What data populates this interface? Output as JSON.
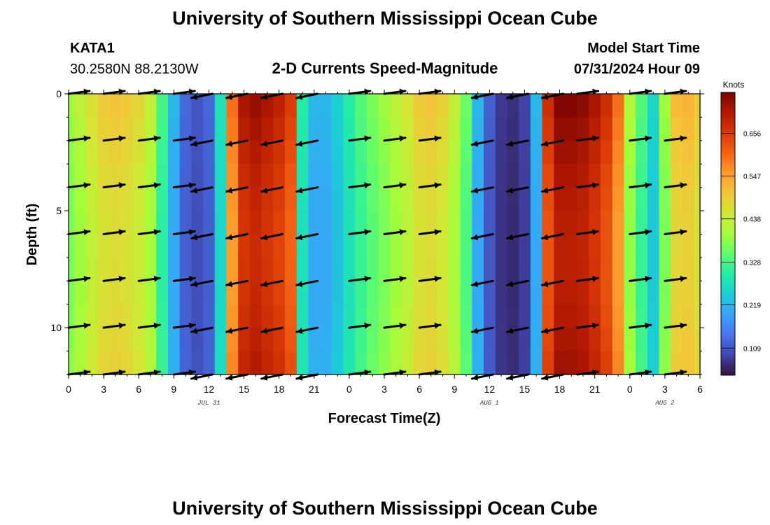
{
  "title": "University of Southern Mississippi Ocean Cube",
  "station": {
    "id": "KATA1",
    "coords": "30.2580N  88.2130W"
  },
  "subtitle": "2-D Currents Speed-Magnitude",
  "model_start": {
    "label": "Model Start Time",
    "value": "07/31/2024 Hour 09"
  },
  "footer_title": "University of Southern Mississippi Ocean Cube",
  "chart_data": {
    "type": "heatmap",
    "title": "2-D Currents Speed-Magnitude",
    "xlabel": "Forecast Time(Z)",
    "ylabel": "Depth (ft)",
    "x_range_hours": [
      0,
      54
    ],
    "y_range_ft": [
      0,
      12
    ],
    "x_tick_labels": [
      "0",
      "3",
      "6",
      "9",
      "12",
      "15",
      "18",
      "21",
      "0",
      "3",
      "6",
      "9",
      "12",
      "15",
      "18",
      "21",
      "0",
      "3",
      "6"
    ],
    "y_tick_labels": [
      "0",
      "5",
      "10"
    ],
    "date_labels": [
      {
        "label": "JUL 31",
        "hour": 12
      },
      {
        "label": "AUG 1",
        "hour": 36
      },
      {
        "label": "AUG 2",
        "hour": 51
      }
    ],
    "colorbar": {
      "unit": "Knots",
      "range": [
        0.04,
        0.76
      ],
      "ticks": [
        "0.109",
        "0.219",
        "0.328",
        "0.438",
        "0.547",
        "0.656"
      ]
    },
    "series_speed_by_hour": [
      0.4,
      0.43,
      0.47,
      0.5,
      0.51,
      0.5,
      0.48,
      0.44,
      0.33,
      0.22,
      0.13,
      0.11,
      0.13,
      0.28,
      0.6,
      0.72,
      0.74,
      0.72,
      0.7,
      0.66,
      0.3,
      0.22,
      0.22,
      0.25,
      0.3,
      0.34,
      0.37,
      0.4,
      0.43,
      0.46,
      0.5,
      0.51,
      0.49,
      0.44,
      0.36,
      0.22,
      0.12,
      0.08,
      0.07,
      0.09,
      0.22,
      0.68,
      0.76,
      0.76,
      0.75,
      0.72,
      0.68,
      0.6,
      0.42,
      0.34,
      0.26,
      0.4,
      0.52,
      0.53,
      0.5
    ],
    "arrow_depths_ft": [
      0,
      2,
      4,
      6,
      8,
      10,
      12
    ],
    "arrow_hours": [
      0,
      3,
      6,
      9,
      10.5,
      13.5,
      16.5,
      19.5,
      24,
      27,
      30,
      34.5,
      37.5,
      40.5,
      43.5,
      48,
      51
    ],
    "arrow_direction": [
      1,
      1,
      1,
      1,
      -1,
      -1,
      -1,
      -1,
      1,
      1,
      1,
      -1,
      -1,
      -1,
      1,
      1,
      1
    ]
  },
  "colors": {
    "cmap": [
      "#30123b",
      "#4145ab",
      "#4675ed",
      "#39a2fc",
      "#1bcfd4",
      "#24eca6",
      "#61fc6c",
      "#a4fc3b",
      "#d1e834",
      "#f3c63a",
      "#fe9b2d",
      "#f36315",
      "#d93806",
      "#b11901",
      "#7a0403"
    ],
    "arrow": "#000000"
  }
}
